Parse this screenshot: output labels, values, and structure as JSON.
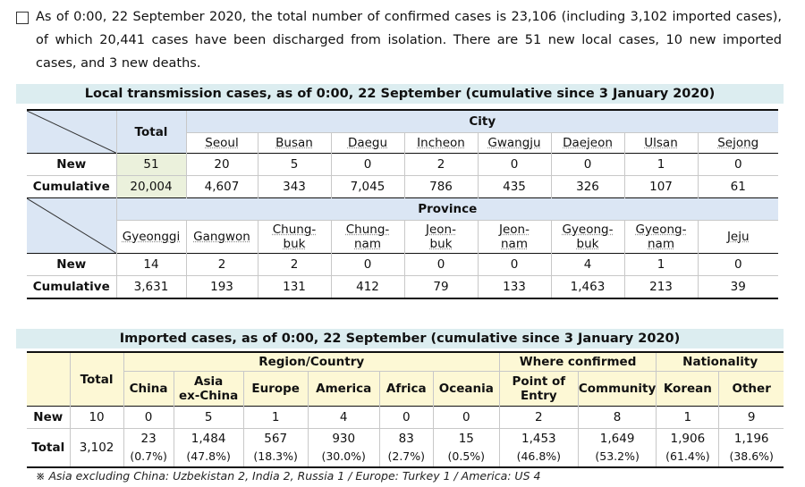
{
  "intro": "As of 0:00, 22 September 2020, the total number of confirmed cases is 23,106 (including 3,102 imported cases), of which 20,441 cases have been discharged from isolation. There are 51 new local cases, 10 new imported cases, and 3 new deaths.",
  "local": {
    "title": "Local transmission cases, as of 0:00, 22 September (cumulative since 3 January 2020)",
    "total_label": "Total",
    "city_label": "City",
    "cities": [
      "Seoul",
      "Busan",
      "Daegu",
      "Incheon",
      "Gwangju",
      "Daejeon",
      "Ulsan",
      "Sejong"
    ],
    "new_label": "New",
    "cum_label": "Cumulative",
    "new_total": "51",
    "new_city": [
      "20",
      "5",
      "0",
      "2",
      "0",
      "0",
      "1",
      "0"
    ],
    "cum_total": "20,004",
    "cum_city": [
      "4,607",
      "343",
      "7,045",
      "786",
      "435",
      "326",
      "107",
      "61"
    ],
    "province_label": "Province",
    "provinces": [
      [
        "Gyeonggi"
      ],
      [
        "Gangwon"
      ],
      [
        "Chung-",
        "buk"
      ],
      [
        "Chung-",
        "nam"
      ],
      [
        "Jeon-",
        "buk"
      ],
      [
        "Jeon-",
        "nam"
      ],
      [
        "Gyeong-",
        "buk"
      ],
      [
        "Gyeong-",
        "nam"
      ],
      [
        "Jeju"
      ]
    ],
    "new_prov": [
      "14",
      "2",
      "2",
      "0",
      "0",
      "0",
      "4",
      "1",
      "0"
    ],
    "cum_prov": [
      "3,631",
      "193",
      "131",
      "412",
      "79",
      "133",
      "1,463",
      "213",
      "39"
    ]
  },
  "imported": {
    "title": "Imported cases, as of 0:00, 22 September (cumulative since 3 January 2020)",
    "total_label": "Total",
    "region_label": "Region/Country",
    "where_label": "Where confirmed",
    "nationality_label": "Nationality",
    "cols": [
      [
        "China"
      ],
      [
        "Asia",
        "ex-China"
      ],
      [
        "Europe"
      ],
      [
        "America"
      ],
      [
        "Africa"
      ],
      [
        "Oceania"
      ],
      [
        "Point of",
        "Entry"
      ],
      [
        "Community"
      ],
      [
        "Korean"
      ],
      [
        "Other"
      ]
    ],
    "new_label": "New",
    "new_total": "10",
    "new_vals": [
      "0",
      "5",
      "1",
      "4",
      "0",
      "0",
      "2",
      "8",
      "1",
      "9"
    ],
    "tot_label": "Total",
    "tot_total": "3,102",
    "tot_vals": [
      "23",
      "1,484",
      "567",
      "930",
      "83",
      "15",
      "1,453",
      "1,649",
      "1,906",
      "1,196"
    ],
    "tot_pct": [
      "(0.7%)",
      "(47.8%)",
      "(18.3%)",
      "(30.0%)",
      "(2.7%)",
      "(0.5%)",
      "(46.8%)",
      "(53.2%)",
      "(61.4%)",
      "(38.6%)"
    ]
  },
  "footnote": "※ Asia excluding China: Uzbekistan 2, India 2, Russia 1   /   Europe: Turkey 1   /   America: US 4",
  "colors": {
    "banner": "#dcedf0",
    "header_blue": "#dbe6f4",
    "header_yellow": "#fdf8d5",
    "highlight": "#ebf1dc"
  }
}
